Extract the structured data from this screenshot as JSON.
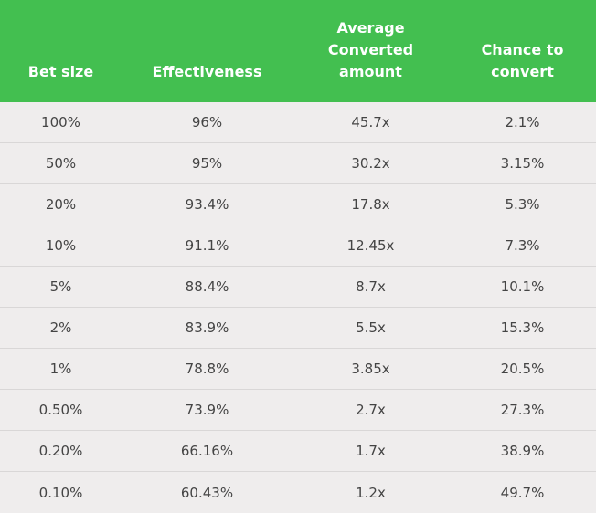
{
  "columns": [
    "Bet size",
    "Effectiveness",
    "Average Converted amount",
    "Chance to convert"
  ],
  "column_lines": [
    [
      "Bet size"
    ],
    [
      "Effectiveness"
    ],
    [
      "Average",
      "Converted",
      "amount"
    ],
    [
      "Chance to",
      "convert"
    ]
  ],
  "rows": [
    [
      "100%",
      "96%",
      "45.7x",
      "2.1%"
    ],
    [
      "50%",
      "95%",
      "30.2x",
      "3.15%"
    ],
    [
      "20%",
      "93.4%",
      "17.8x",
      "5.3%"
    ],
    [
      "10%",
      "91.1%",
      "12.45x",
      "7.3%"
    ],
    [
      "5%",
      "88.4%",
      "8.7x",
      "10.1%"
    ],
    [
      "2%",
      "83.9%",
      "5.5x",
      "15.3%"
    ],
    [
      "1%",
      "78.8%",
      "3.85x",
      "20.5%"
    ],
    [
      "0.50%",
      "73.9%",
      "2.7x",
      "27.3%"
    ],
    [
      "0.20%",
      "66.16%",
      "1.7x",
      "38.9%"
    ],
    [
      "0.10%",
      "60.43%",
      "1.2x",
      "49.7%"
    ]
  ],
  "colors": {
    "header_bg": "#43bf50",
    "header_text": "#ffffff",
    "body_bg": "#efeded",
    "body_text": "#444444",
    "divider": "#d9d7d7"
  }
}
